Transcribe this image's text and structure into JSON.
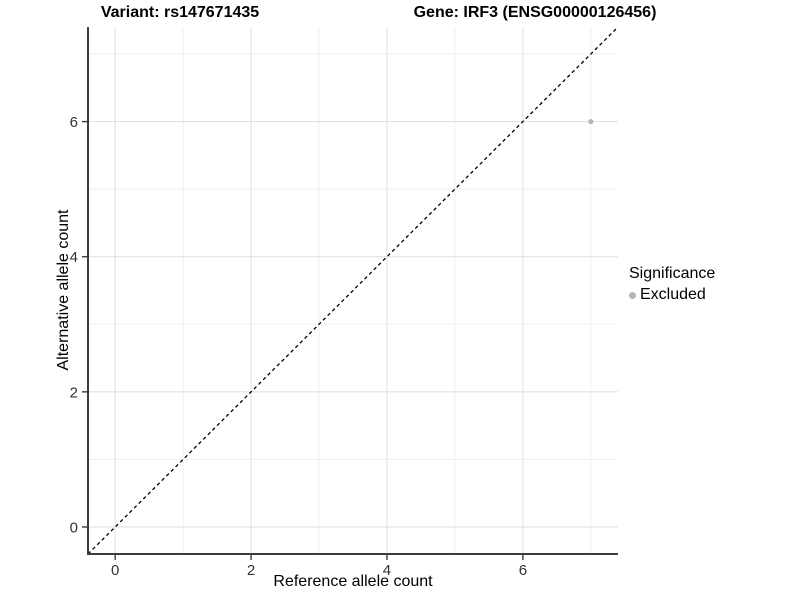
{
  "titles": {
    "left": "Variant: rs147671435",
    "right": "Gene: IRF3 (ENSG00000126456)"
  },
  "chart_data": {
    "type": "scatter",
    "title_left": "Variant: rs147671435",
    "title_right": "Gene: IRF3 (ENSG00000126456)",
    "xlabel": "Reference allele count",
    "ylabel": "Alternative allele count",
    "xlim": [
      -0.4,
      7.4
    ],
    "ylim": [
      -0.4,
      7.4
    ],
    "xticks": [
      0,
      2,
      4,
      6
    ],
    "yticks": [
      0,
      2,
      4,
      6
    ],
    "grid": {
      "on": true,
      "major_step": 2,
      "minor_step": 1
    },
    "identity_line": {
      "slope": 1,
      "intercept": 0,
      "style": "dashed",
      "color": "#000000"
    },
    "series": [
      {
        "name": "Excluded",
        "color": "#b5b5b5",
        "points": [
          {
            "x": 7,
            "y": 6
          }
        ]
      }
    ],
    "legend": {
      "title": "Significance",
      "position": "right",
      "entries": [
        {
          "label": "Excluded",
          "color": "#b5b5b5"
        }
      ]
    }
  },
  "colors": {
    "background": "#ffffff",
    "grid_major": "#e2e2e2",
    "grid_minor": "#efefef",
    "axis_line": "#3c3c3c",
    "tick_label": "#333333",
    "point": "#b5b5b5"
  }
}
